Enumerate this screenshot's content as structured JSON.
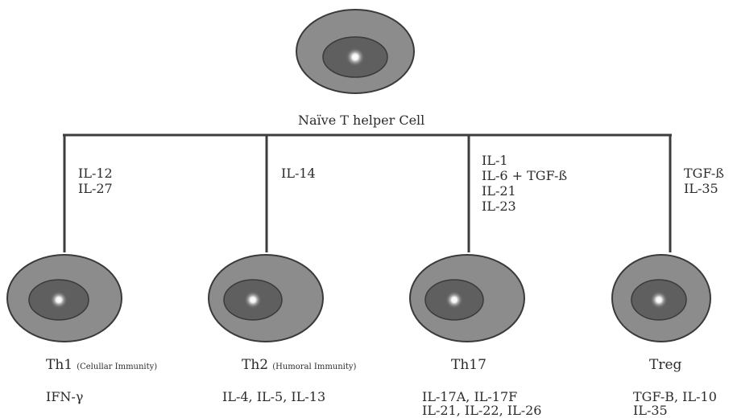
{
  "naive_cell": {
    "label": "Naïve T helper Cell"
  },
  "branches": [
    {
      "signals": [
        "IL-12",
        "IL-27"
      ]
    },
    {
      "signals": [
        "IL-14"
      ]
    },
    {
      "signals": [
        "IL-1",
        "IL-6 + TGF-ß",
        "IL-21",
        "IL-23"
      ]
    },
    {
      "signals": [
        "TGF-ß",
        "IL-35"
      ]
    }
  ],
  "subsets": [
    {
      "name": "Th1",
      "note": "(Celullar Immunity)",
      "cytokines": [
        "IFN-γ"
      ]
    },
    {
      "name": "Th2",
      "note": "(Humoral Immunity)",
      "cytokines": [
        "IL-4, IL-5, IL-13"
      ]
    },
    {
      "name": "Th17",
      "note": "",
      "cytokines": [
        "IL-17A, IL-17F",
        "IL-21, IL-22, IL-26"
      ]
    },
    {
      "name": "Treg",
      "note": "",
      "cytokines": [
        "TGF-B, IL-10",
        "IL-35"
      ]
    }
  ],
  "colors": {
    "outer_cell": "#8c8c8c",
    "inner_nucleus": "#5f5f5f",
    "outline": "#3a3a3a",
    "line": "#3c3c3c"
  }
}
